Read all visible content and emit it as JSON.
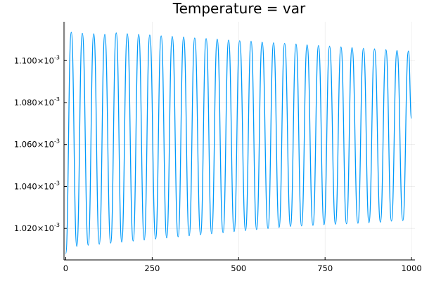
{
  "chart_data": {
    "type": "line",
    "title": "Temperature = var",
    "xlabel": "",
    "ylabel": "",
    "xlim": [
      -5,
      1010
    ],
    "ylim": [
      0.001005,
      0.0011185
    ],
    "x_ticks": [
      0,
      250,
      500,
      750,
      1000
    ],
    "x_tick_labels": [
      "0",
      "250",
      "500",
      "750",
      "1000"
    ],
    "y_ticks": [
      0.00102,
      0.00104,
      0.00106,
      0.00108,
      0.0011
    ],
    "y_tick_labels": [
      {
        "mantissa": "1.020",
        "exp": "-3"
      },
      {
        "mantissa": "1.040",
        "exp": "-3"
      },
      {
        "mantissa": "1.060",
        "exp": "-3"
      },
      {
        "mantissa": "1.080",
        "exp": "-3"
      },
      {
        "mantissa": "1.100",
        "exp": "-3"
      }
    ],
    "grid": true,
    "legend": "none",
    "series": [
      {
        "color": "#009AFA",
        "description": "damped oscillation, period ~32.5",
        "x": [
          0,
          16,
          32,
          48,
          65,
          81,
          97,
          113,
          130,
          146,
          162,
          178,
          195,
          211,
          227,
          243,
          260,
          276,
          292,
          308,
          325,
          341,
          357,
          373,
          390,
          406,
          422,
          438,
          455,
          471,
          487,
          503,
          520,
          536,
          552,
          568,
          585,
          601,
          617,
          633,
          650,
          666,
          682,
          698,
          715,
          731,
          747,
          763,
          780,
          796,
          812,
          828,
          845,
          861,
          877,
          893,
          910,
          926,
          942,
          958,
          975,
          991,
          1000
        ],
        "y": [
          0.001008,
          0.0011135,
          0.0010115,
          0.001113,
          0.001012,
          0.0011128,
          0.0010125,
          0.0011125,
          0.001013,
          0.0011132,
          0.0010135,
          0.0011128,
          0.001014,
          0.0011125,
          0.0010145,
          0.0011122,
          0.001015,
          0.0011118,
          0.0010155,
          0.0011115,
          0.001016,
          0.0011112,
          0.0010165,
          0.0011108,
          0.001017,
          0.0011105,
          0.0010175,
          0.0011102,
          0.001018,
          0.0011098,
          0.0010185,
          0.0011095,
          0.001019,
          0.0011092,
          0.0010195,
          0.0011088,
          0.00102,
          0.0011085,
          0.0010205,
          0.0011082,
          0.001021,
          0.0011078,
          0.0010212,
          0.0011075,
          0.0010215,
          0.0011072,
          0.0010218,
          0.0011068,
          0.001022,
          0.0011065,
          0.0010222,
          0.0011062,
          0.0010225,
          0.0011058,
          0.0010228,
          0.0011055,
          0.001023,
          0.0011052,
          0.0010235,
          0.0011048,
          0.0010238,
          0.0011045,
          0.0010725
        ]
      }
    ]
  }
}
